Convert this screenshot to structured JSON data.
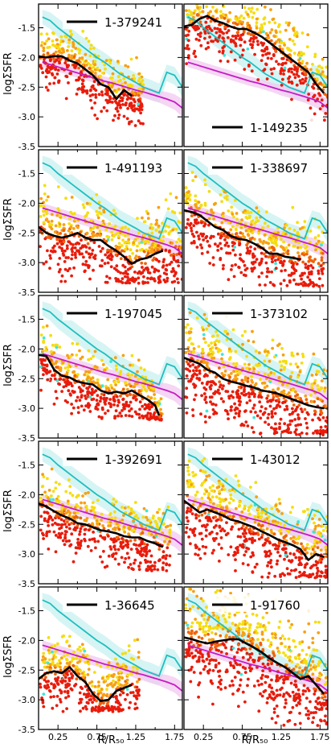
{
  "chart_data": {
    "type": "scatter",
    "layout": {
      "rows": 5,
      "cols": 2
    },
    "ylabel": "logΣSFR",
    "xlabel": "R/R₅₀",
    "xlim": [
      0.0,
      1.85
    ],
    "ylim": [
      -3.5,
      -1.1
    ],
    "xticks": [
      0.25,
      0.75,
      1.25,
      1.75
    ],
    "xtick_labels": [
      "0.25",
      "0.75",
      "1.25",
      "1.75"
    ],
    "minor_xticks": [
      0.5,
      1.0,
      1.5
    ],
    "yticks": [
      -1.5,
      -2.0,
      -2.5,
      -3.0,
      -3.5
    ],
    "ytick_labels": [
      "-1.5",
      "-2.0",
      "-2.5",
      "-3.0",
      "-3.5"
    ],
    "colors": {
      "galaxy_profile": "#000000",
      "reference_high": "#1fbfbf",
      "reference_high_band": "#c8f0f0",
      "reference_low": "#c41bc4",
      "reference_low_band": "#f2c8f0",
      "spaxels": [
        "#e81c0c",
        "#f0620a",
        "#f7a012",
        "#f5dd10",
        "#3ce8d8"
      ]
    },
    "reference_high": {
      "x": [
        0.05,
        0.15,
        0.25,
        0.35,
        0.45,
        0.55,
        0.65,
        0.75,
        0.85,
        0.95,
        1.05,
        1.15,
        1.25,
        1.35,
        1.45,
        1.55,
        1.65,
        1.75,
        1.85
      ],
      "y": [
        -1.32,
        -1.38,
        -1.5,
        -1.6,
        -1.7,
        -1.8,
        -1.9,
        -2.0,
        -2.08,
        -2.18,
        -2.28,
        -2.35,
        -2.42,
        -2.5,
        -2.55,
        -2.6,
        -2.25,
        -2.3,
        -2.5
      ],
      "band_upper": [
        -1.2,
        -1.24,
        -1.34,
        -1.44,
        -1.54,
        -1.64,
        -1.74,
        -1.84,
        -1.92,
        -2.02,
        -2.12,
        -2.19,
        -2.26,
        -2.34,
        -2.38,
        -2.44,
        -2.12,
        -2.16,
        -2.36
      ],
      "band_lower": [
        -1.44,
        -1.52,
        -1.66,
        -1.76,
        -1.86,
        -1.96,
        -2.06,
        -2.16,
        -2.24,
        -2.34,
        -2.44,
        -2.51,
        -2.58,
        -2.66,
        -2.72,
        -2.76,
        -2.4,
        -2.46,
        -2.66
      ]
    },
    "reference_low": {
      "x": [
        0.05,
        0.15,
        0.25,
        0.35,
        0.45,
        0.55,
        0.65,
        0.75,
        0.85,
        0.95,
        1.05,
        1.15,
        1.25,
        1.35,
        1.45,
        1.55,
        1.65,
        1.75,
        1.85
      ],
      "y": [
        -2.08,
        -2.12,
        -2.16,
        -2.2,
        -2.24,
        -2.28,
        -2.32,
        -2.36,
        -2.4,
        -2.43,
        -2.47,
        -2.51,
        -2.55,
        -2.58,
        -2.62,
        -2.66,
        -2.7,
        -2.75,
        -2.85
      ],
      "band_upper": [
        -2.0,
        -2.04,
        -2.08,
        -2.12,
        -2.16,
        -2.2,
        -2.24,
        -2.28,
        -2.32,
        -2.35,
        -2.39,
        -2.43,
        -2.46,
        -2.48,
        -2.52,
        -2.56,
        -2.58,
        -2.62,
        -2.7
      ],
      "band_lower": [
        -2.16,
        -2.2,
        -2.24,
        -2.28,
        -2.32,
        -2.36,
        -2.4,
        -2.44,
        -2.48,
        -2.51,
        -2.55,
        -2.59,
        -2.64,
        -2.68,
        -2.72,
        -2.76,
        -2.82,
        -2.88,
        -3.0
      ]
    },
    "panels": [
      {
        "id": "1-379241",
        "legend_pos": "top",
        "spread": 0.18,
        "xmax": 1.35,
        "ymin_cut": -3.15,
        "profile": {
          "x": [
            0.0,
            0.1,
            0.2,
            0.3,
            0.4,
            0.5,
            0.6,
            0.7,
            0.8,
            0.9,
            1.0,
            1.1,
            1.2
          ],
          "y": [
            -1.98,
            -2.0,
            -1.98,
            -1.98,
            -2.05,
            -2.1,
            -2.2,
            -2.3,
            -2.45,
            -2.5,
            -2.7,
            -2.55,
            -2.65
          ]
        }
      },
      {
        "id": "1-149235",
        "legend_pos": "bottom",
        "spread": 0.2,
        "xmax": 1.85,
        "ymin_cut": -3.2,
        "profile": {
          "x": [
            0.0,
            0.1,
            0.2,
            0.3,
            0.4,
            0.5,
            0.6,
            0.7,
            0.8,
            0.9,
            1.0,
            1.1,
            1.2,
            1.3,
            1.4,
            1.5,
            1.6,
            1.7,
            1.8
          ],
          "y": [
            -1.48,
            -1.45,
            -1.35,
            -1.3,
            -1.38,
            -1.42,
            -1.48,
            -1.52,
            -1.52,
            -1.58,
            -1.65,
            -1.75,
            -1.85,
            -1.95,
            -2.05,
            -2.15,
            -2.25,
            -2.45,
            -2.6
          ]
        }
      },
      {
        "id": "1-491193",
        "legend_pos": "top",
        "spread": 0.25,
        "xmax": 1.85,
        "ymin_cut": -3.35,
        "profile": {
          "x": [
            0.0,
            0.1,
            0.2,
            0.3,
            0.4,
            0.5,
            0.6,
            0.7,
            0.8,
            0.9,
            1.0,
            1.1,
            1.2,
            1.3,
            1.4,
            1.5,
            1.6
          ],
          "y": [
            -2.4,
            -2.5,
            -2.55,
            -2.58,
            -2.55,
            -2.5,
            -2.58,
            -2.62,
            -2.62,
            -2.72,
            -2.8,
            -2.9,
            -3.02,
            -2.95,
            -2.92,
            -2.85,
            -2.8
          ]
        }
      },
      {
        "id": "1-338697",
        "legend_pos": "top",
        "spread": 0.22,
        "xmax": 1.8,
        "ymin_cut": -3.4,
        "profile": {
          "x": [
            0.0,
            0.1,
            0.2,
            0.3,
            0.4,
            0.5,
            0.6,
            0.7,
            0.8,
            0.9,
            1.0,
            1.1,
            1.2,
            1.3,
            1.4,
            1.5
          ],
          "y": [
            -2.12,
            -2.15,
            -2.2,
            -2.3,
            -2.4,
            -2.45,
            -2.55,
            -2.6,
            -2.62,
            -2.68,
            -2.75,
            -2.85,
            -2.85,
            -2.9,
            -2.92,
            -2.95
          ]
        }
      },
      {
        "id": "1-197045",
        "legend_pos": "top",
        "spread": 0.18,
        "xmax": 1.6,
        "ymin_cut": -3.2,
        "profile": {
          "x": [
            0.0,
            0.1,
            0.2,
            0.3,
            0.4,
            0.5,
            0.6,
            0.7,
            0.8,
            0.9,
            1.0,
            1.1,
            1.2,
            1.3,
            1.4,
            1.5,
            1.55
          ],
          "y": [
            -2.1,
            -2.12,
            -2.35,
            -2.45,
            -2.48,
            -2.55,
            -2.58,
            -2.6,
            -2.7,
            -2.75,
            -2.72,
            -2.75,
            -2.7,
            -2.78,
            -2.85,
            -2.95,
            -3.12
          ]
        }
      },
      {
        "id": "1-373102",
        "legend_pos": "top",
        "spread": 0.28,
        "xmax": 1.85,
        "ymin_cut": -3.45,
        "profile": {
          "x": [
            0.0,
            0.1,
            0.2,
            0.3,
            0.4,
            0.5,
            0.6,
            0.7,
            0.8,
            0.9,
            1.0,
            1.1,
            1.2,
            1.3,
            1.4,
            1.5,
            1.6,
            1.7,
            1.8
          ],
          "y": [
            -2.15,
            -2.2,
            -2.25,
            -2.35,
            -2.4,
            -2.5,
            -2.55,
            -2.58,
            -2.62,
            -2.65,
            -2.7,
            -2.72,
            -2.75,
            -2.8,
            -2.85,
            -2.9,
            -2.95,
            -2.98,
            -3.0
          ]
        }
      },
      {
        "id": "1-392691",
        "legend_pos": "top",
        "spread": 0.2,
        "xmax": 1.7,
        "ymin_cut": -3.3,
        "profile": {
          "x": [
            0.0,
            0.1,
            0.2,
            0.3,
            0.4,
            0.5,
            0.6,
            0.7,
            0.8,
            0.9,
            1.0,
            1.1,
            1.2,
            1.3,
            1.4,
            1.5,
            1.6
          ],
          "y": [
            -2.15,
            -2.2,
            -2.28,
            -2.35,
            -2.4,
            -2.48,
            -2.5,
            -2.55,
            -2.6,
            -2.62,
            -2.65,
            -2.7,
            -2.72,
            -2.72,
            -2.78,
            -2.82,
            -2.88
          ]
        }
      },
      {
        "id": "1-43012",
        "legend_pos": "top",
        "spread": 0.24,
        "xmax": 1.85,
        "ymin_cut": -3.4,
        "profile": {
          "x": [
            0.0,
            0.1,
            0.2,
            0.3,
            0.4,
            0.5,
            0.6,
            0.7,
            0.8,
            0.9,
            1.0,
            1.1,
            1.2,
            1.3,
            1.4,
            1.5,
            1.6,
            1.7,
            1.8
          ],
          "y": [
            -2.1,
            -2.2,
            -2.3,
            -2.25,
            -2.3,
            -2.35,
            -2.42,
            -2.45,
            -2.5,
            -2.55,
            -2.62,
            -2.68,
            -2.75,
            -2.8,
            -2.85,
            -2.92,
            -3.1,
            -3.0,
            -3.05
          ]
        }
      },
      {
        "id": "1-36645",
        "legend_pos": "top",
        "spread": 0.2,
        "xmax": 1.3,
        "ymin_cut": -3.2,
        "profile": {
          "x": [
            0.0,
            0.1,
            0.2,
            0.3,
            0.4,
            0.5,
            0.6,
            0.7,
            0.8,
            0.9,
            1.0,
            1.1,
            1.2
          ],
          "y": [
            -2.65,
            -2.55,
            -2.52,
            -2.55,
            -2.45,
            -2.6,
            -2.7,
            -2.9,
            -3.02,
            -3.0,
            -2.85,
            -2.8,
            -2.75
          ]
        }
      },
      {
        "id": "1-91760",
        "legend_pos": "top",
        "spread": 0.3,
        "xmax": 1.85,
        "ymin_cut": -3.45,
        "profile": {
          "x": [
            0.0,
            0.1,
            0.2,
            0.3,
            0.4,
            0.5,
            0.6,
            0.7,
            0.8,
            0.9,
            1.0,
            1.1,
            1.2,
            1.3,
            1.4,
            1.5,
            1.6,
            1.7,
            1.8
          ],
          "y": [
            -1.95,
            -1.98,
            -2.02,
            -2.05,
            -2.02,
            -2.0,
            -1.98,
            -1.98,
            -2.05,
            -2.12,
            -2.2,
            -2.3,
            -2.38,
            -2.45,
            -2.55,
            -2.65,
            -2.6,
            -2.75,
            -2.9
          ]
        }
      }
    ]
  }
}
